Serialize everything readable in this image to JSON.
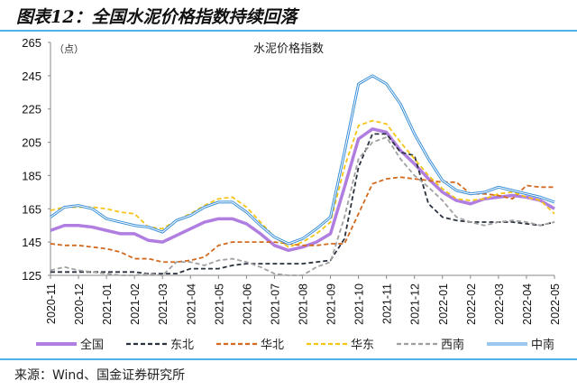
{
  "title": "图表12：全国水泥价格指数持续回落",
  "source": "来源：Wind、国金证券研究所",
  "chart_data": {
    "type": "line",
    "title": "水泥价格指数",
    "ylabel": "（点）",
    "ylim": [
      125,
      265
    ],
    "yticks": [
      125,
      145,
      165,
      185,
      205,
      225,
      245,
      265
    ],
    "xticks": [
      "2020-11",
      "2020-12",
      "2021-01",
      "2021-02",
      "2021-03",
      "2021-04",
      "2021-05",
      "2021-06",
      "2021-07",
      "2021-08",
      "2021-09",
      "2021-10",
      "2021-11",
      "2021-12",
      "2022-01",
      "2022-02",
      "2022-03",
      "2022-04",
      "2022-05"
    ],
    "x_note_points_per_month": 2,
    "legend_position": "bottom",
    "grid": false,
    "series": [
      {
        "name": "全国",
        "color": "#b07ee0",
        "dash": "",
        "width": 3.5,
        "values": [
          152,
          155,
          155,
          154,
          152,
          150,
          150,
          146,
          145,
          149,
          153,
          157,
          159,
          159,
          156,
          150,
          143,
          140,
          142,
          145,
          150,
          178,
          207,
          213,
          211,
          200,
          192,
          183,
          175,
          170,
          168,
          171,
          172,
          173,
          172,
          170,
          165
        ]
      },
      {
        "name": "东北",
        "color": "#2b3340",
        "dash": "5,3",
        "width": 1.8,
        "values": [
          127,
          127,
          127,
          127,
          127,
          127,
          127,
          126,
          126,
          126,
          129,
          129,
          129,
          131,
          132,
          132,
          132,
          132,
          132,
          133,
          134,
          147,
          190,
          210,
          210,
          199,
          197,
          168,
          160,
          158,
          157,
          157,
          157,
          157,
          156,
          155,
          157
        ]
      },
      {
        "name": "华北",
        "color": "#d2691e",
        "dash": "5,3",
        "width": 1.8,
        "values": [
          144,
          143,
          143,
          142,
          141,
          139,
          135,
          135,
          133,
          133,
          134,
          136,
          143,
          145,
          145,
          145,
          145,
          144,
          143,
          143,
          144,
          144,
          162,
          180,
          183,
          184,
          183,
          182,
          181,
          181,
          174,
          174,
          173,
          171,
          179,
          178,
          178
        ]
      },
      {
        "name": "华东",
        "color": "#f5c518",
        "dash": "5,3",
        "width": 1.8,
        "values": [
          164,
          166,
          166,
          166,
          165,
          163,
          162,
          154,
          153,
          158,
          162,
          167,
          171,
          172,
          166,
          157,
          148,
          142,
          145,
          150,
          157,
          190,
          215,
          218,
          216,
          205,
          195,
          185,
          177,
          171,
          170,
          171,
          174,
          175,
          172,
          170,
          162
        ]
      },
      {
        "name": "西南",
        "color": "#a0a0a0",
        "dash": "5,3",
        "width": 1.8,
        "values": [
          128,
          130,
          128,
          127,
          126,
          125,
          125,
          126,
          125,
          133,
          133,
          131,
          134,
          135,
          133,
          130,
          126,
          125,
          125,
          130,
          133,
          160,
          195,
          205,
          208,
          195,
          185,
          178,
          170,
          160,
          157,
          155,
          157,
          158,
          157,
          155,
          157
        ]
      },
      {
        "name": "中南",
        "color": "#3a8fd8",
        "dash": "",
        "width": 2,
        "double": true,
        "values": [
          160,
          166,
          167,
          165,
          159,
          157,
          155,
          154,
          151,
          158,
          161,
          166,
          169,
          169,
          163,
          155,
          148,
          144,
          147,
          153,
          160,
          199,
          240,
          245,
          240,
          228,
          210,
          195,
          182,
          176,
          174,
          175,
          178,
          176,
          174,
          172,
          169
        ]
      }
    ]
  }
}
